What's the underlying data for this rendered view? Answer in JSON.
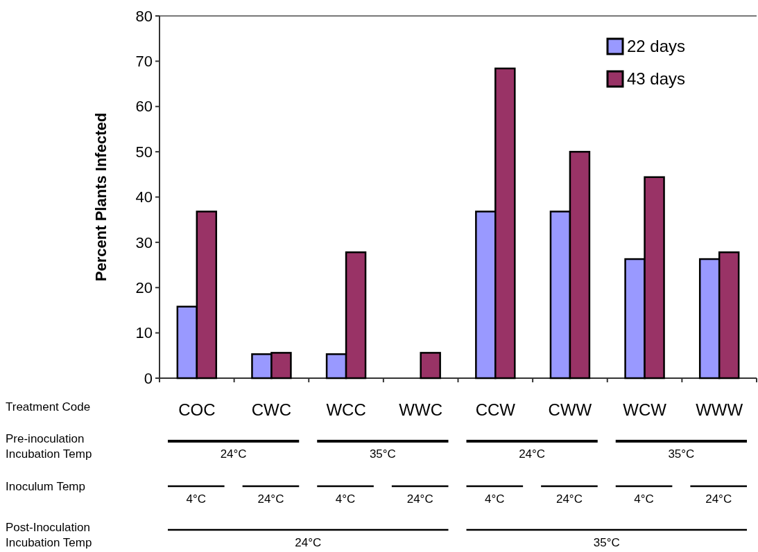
{
  "chart_data": {
    "type": "bar",
    "ylabel": "Percent Plants Infected",
    "xlabel": "Treatment Code",
    "categories": [
      "COC",
      "CWC",
      "WCC",
      "WWC",
      "CCW",
      "CWW",
      "WCW",
      "WWW"
    ],
    "series": [
      {
        "name": "22 days",
        "color": "#9999ff",
        "values": [
          15.8,
          5.3,
          5.3,
          0,
          36.8,
          36.8,
          26.3,
          26.3
        ]
      },
      {
        "name": "43 days",
        "color": "#993366",
        "values": [
          36.8,
          5.6,
          27.8,
          5.6,
          68.4,
          50,
          44.4,
          27.8
        ]
      }
    ],
    "ylim": [
      0,
      80
    ],
    "yticks": [
      0,
      10,
      20,
      30,
      40,
      50,
      60,
      70,
      80
    ],
    "legend": "top right",
    "annotations": [
      "Pre-inoculation Incubation Temp",
      "24°C",
      "35°C",
      "24°C",
      "35°C",
      "Inoculum Temp",
      "4°C",
      "24°C",
      "4°C",
      "24°C",
      "4°C",
      "24°C",
      "4°C",
      "24°C",
      "Post-Inoculation Incubation Temp",
      "24°C",
      "35°C"
    ]
  }
}
